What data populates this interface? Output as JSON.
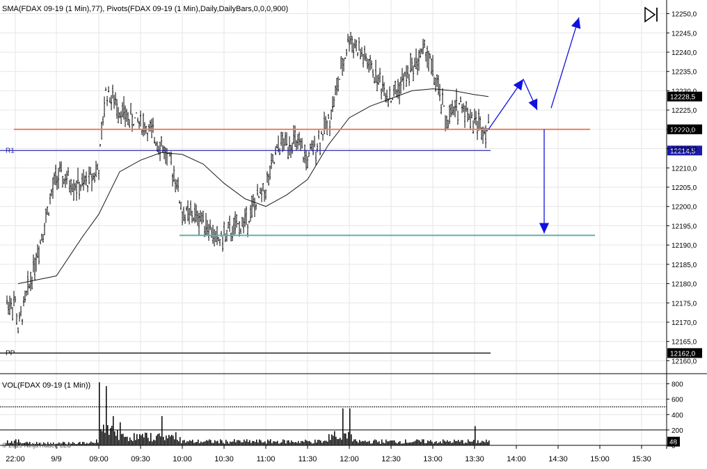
{
  "header": {
    "indicators_label": "SMA(FDAX 09-19 (1 Min),77),  Pivots(FDAX 09-19 (1 Min),Daily,DailyBars,0,0,0,900)",
    "volume_label": "VOL(FDAX 09-19 (1 Min))",
    "copyright": "© 2019 NinjaTrader, LLC"
  },
  "chart_data": {
    "type": "candlestick",
    "price_panel": {
      "y_ticks": [
        "12250,0",
        "12245,0",
        "12240,0",
        "12235,0",
        "12230,0",
        "12225,0",
        "12220,0",
        "12215,0",
        "12210,0",
        "12205,0",
        "12200,0",
        "12195,0",
        "12190,0",
        "12185,0",
        "12180,0",
        "12175,0",
        "12170,0",
        "12165,0",
        "12160,0"
      ],
      "ylim": [
        12159,
        12251
      ],
      "levels": [
        {
          "label": "R1",
          "value": 12214.5,
          "color": "#1a1aa8",
          "marker": "12214,5"
        },
        {
          "label": "PP",
          "value": 12162.0,
          "color": "#000000",
          "marker": "12162,0"
        },
        {
          "label": "",
          "value": 12220.0,
          "color": "#f08060",
          "marker": "12220,0"
        },
        {
          "label": "",
          "value": 12192.5,
          "color": "#5fb2a8",
          "marker": ""
        }
      ],
      "last_price": "12228,5",
      "sma_path": [
        {
          "t": "22:05",
          "v": 12180
        },
        {
          "t": "9/9 ",
          "v": 12182
        },
        {
          "t": "08:40",
          "v": 12192
        },
        {
          "t": "09:00",
          "v": 12198
        },
        {
          "t": "09:15",
          "v": 12209
        },
        {
          "t": "09:30",
          "v": 12212
        },
        {
          "t": "09:45",
          "v": 12214
        },
        {
          "t": "10:00",
          "v": 12213.5
        },
        {
          "t": "10:15",
          "v": 12211
        },
        {
          "t": "10:30",
          "v": 12206
        },
        {
          "t": "10:45",
          "v": 12202
        },
        {
          "t": "11:00",
          "v": 12200
        },
        {
          "t": "11:15",
          "v": 12203
        },
        {
          "t": "11:30",
          "v": 12207
        },
        {
          "t": "11:45",
          "v": 12216
        },
        {
          "t": "12:00",
          "v": 12223
        },
        {
          "t": "12:15",
          "v": 12226
        },
        {
          "t": "12:30",
          "v": 12228
        },
        {
          "t": "12:45",
          "v": 12230
        },
        {
          "t": "13:00",
          "v": 12230.5
        },
        {
          "t": "13:15",
          "v": 12230
        },
        {
          "t": "13:30",
          "v": 12229
        },
        {
          "t": "13:40",
          "v": 12228.5
        }
      ],
      "price_path": [
        {
          "t": "22:00",
          "v": 12175
        },
        {
          "t": "22:05",
          "v": 12168
        },
        {
          "t": "9/9 ",
          "v": 12208
        },
        {
          "t": "08:40",
          "v": 12205
        },
        {
          "t": "09:00",
          "v": 12210
        },
        {
          "t": "09:05",
          "v": 12230
        },
        {
          "t": "09:20",
          "v": 12223
        },
        {
          "t": "09:30",
          "v": 12222
        },
        {
          "t": "09:45",
          "v": 12216
        },
        {
          "t": "09:55",
          "v": 12208
        },
        {
          "t": "10:00",
          "v": 12198
        },
        {
          "t": "10:15",
          "v": 12197
        },
        {
          "t": "10:25",
          "v": 12191
        },
        {
          "t": "10:45",
          "v": 12196
        },
        {
          "t": "11:00",
          "v": 12205
        },
        {
          "t": "11:10",
          "v": 12216
        },
        {
          "t": "11:20",
          "v": 12217
        },
        {
          "t": "11:30",
          "v": 12212
        },
        {
          "t": "11:45",
          "v": 12222
        },
        {
          "t": "11:55",
          "v": 12236
        },
        {
          "t": "12:00",
          "v": 12244
        },
        {
          "t": "12:15",
          "v": 12236
        },
        {
          "t": "12:30",
          "v": 12228
        },
        {
          "t": "12:45",
          "v": 12236
        },
        {
          "t": "12:55",
          "v": 12241
        },
        {
          "t": "13:10",
          "v": 12222
        },
        {
          "t": "13:20",
          "v": 12227
        },
        {
          "t": "13:30",
          "v": 12222
        },
        {
          "t": "13:40",
          "v": 12220
        }
      ],
      "projection_arrows": [
        {
          "from": {
            "t": "13:40",
            "v": 12220
          },
          "to": {
            "t": "14:05",
            "v": 12233
          }
        },
        {
          "from": {
            "t": "14:05",
            "v": 12233
          },
          "to": {
            "t": "14:15",
            "v": 12225
          }
        },
        {
          "from": {
            "t": "14:25",
            "v": 12225.5
          },
          "to": {
            "t": "14:45",
            "v": 12249
          }
        },
        {
          "from": {
            "t": "14:20",
            "v": 12220
          },
          "to": {
            "t": "14:20",
            "v": 12193
          }
        }
      ]
    },
    "volume_panel": {
      "y_ticks": [
        "800",
        "600",
        "400",
        "200",
        "0"
      ],
      "ylim": [
        0,
        850
      ],
      "reference_lines": [
        500,
        200
      ],
      "last_volume": "48",
      "volume_peaks": [
        {
          "t": "09:00",
          "v": 820
        },
        {
          "t": "09:05",
          "v": 770
        },
        {
          "t": "09:10",
          "v": 380
        },
        {
          "t": "09:15",
          "v": 300
        },
        {
          "t": "09:45",
          "v": 380
        },
        {
          "t": "11:55",
          "v": 480
        },
        {
          "t": "12:00",
          "v": 480
        },
        {
          "t": "13:30",
          "v": 250
        }
      ]
    },
    "x_ticks": [
      "22:00",
      "9/9",
      "09:00",
      "09:30",
      "10:00",
      "10:30",
      "11:00",
      "11:30",
      "12:00",
      "12:30",
      "13:00",
      "13:30",
      "14:00",
      "14:30",
      "15:00",
      "15:30"
    ]
  },
  "toolbar": {
    "scroll_end_icon": "scroll-to-end-icon"
  }
}
